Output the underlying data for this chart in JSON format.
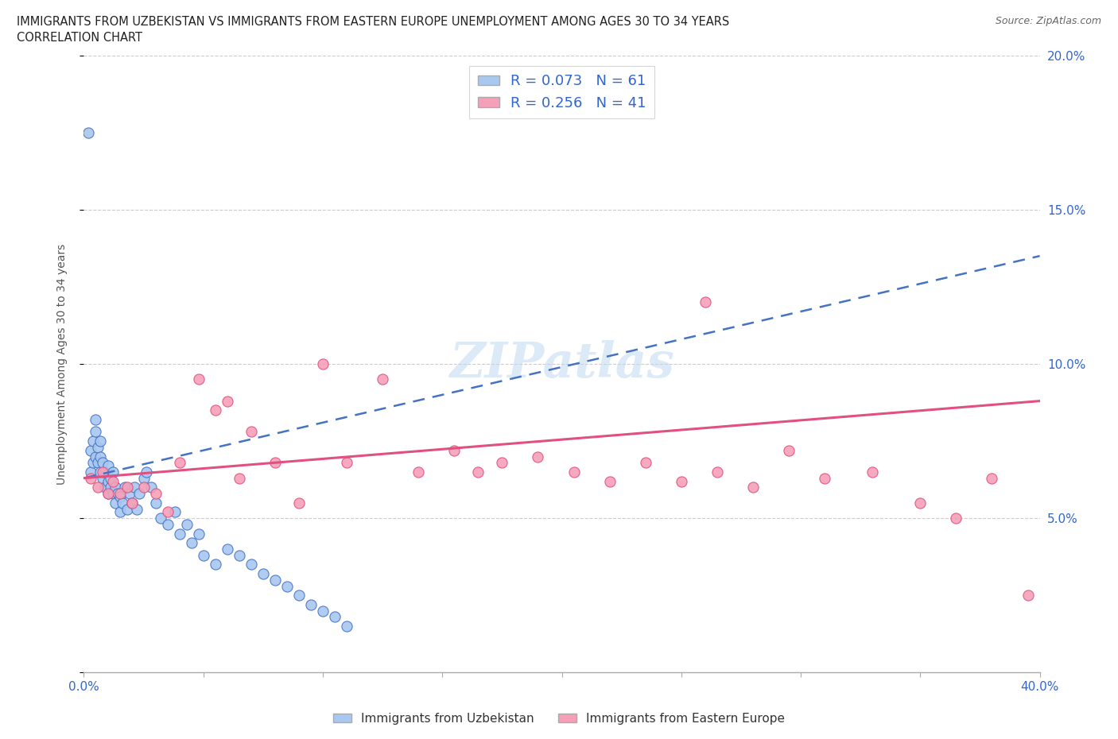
{
  "title_line1": "IMMIGRANTS FROM UZBEKISTAN VS IMMIGRANTS FROM EASTERN EUROPE UNEMPLOYMENT AMONG AGES 30 TO 34 YEARS",
  "title_line2": "CORRELATION CHART",
  "source": "Source: ZipAtlas.com",
  "ylabel": "Unemployment Among Ages 30 to 34 years",
  "xlim": [
    0,
    0.4
  ],
  "ylim": [
    0,
    0.2
  ],
  "color_uzbekistan": "#a8c8f0",
  "color_eastern_europe": "#f5a0b8",
  "line_color_uzbekistan": "#4472C4",
  "line_color_eastern_europe": "#E05080",
  "R_uzbekistan": 0.073,
  "N_uzbekistan": 61,
  "R_eastern_europe": 0.256,
  "N_eastern_europe": 41,
  "watermark": "ZIPatlas",
  "uz_trend_x0": 0.0,
  "uz_trend_y0": 0.063,
  "uz_trend_x1": 0.4,
  "uz_trend_y1": 0.135,
  "ee_trend_x0": 0.0,
  "ee_trend_y0": 0.063,
  "ee_trend_x1": 0.4,
  "ee_trend_y1": 0.088,
  "uzbekistan_x": [
    0.002,
    0.003,
    0.003,
    0.004,
    0.004,
    0.005,
    0.005,
    0.005,
    0.006,
    0.006,
    0.007,
    0.007,
    0.007,
    0.008,
    0.008,
    0.009,
    0.009,
    0.01,
    0.01,
    0.01,
    0.011,
    0.011,
    0.012,
    0.012,
    0.013,
    0.013,
    0.014,
    0.015,
    0.015,
    0.016,
    0.017,
    0.018,
    0.019,
    0.02,
    0.021,
    0.022,
    0.023,
    0.025,
    0.026,
    0.028,
    0.03,
    0.032,
    0.035,
    0.038,
    0.04,
    0.043,
    0.045,
    0.048,
    0.05,
    0.055,
    0.06,
    0.065,
    0.07,
    0.075,
    0.08,
    0.085,
    0.09,
    0.095,
    0.1,
    0.105,
    0.11
  ],
  "uzbekistan_y": [
    0.175,
    0.065,
    0.072,
    0.068,
    0.075,
    0.07,
    0.078,
    0.082,
    0.068,
    0.073,
    0.065,
    0.07,
    0.075,
    0.063,
    0.068,
    0.06,
    0.065,
    0.058,
    0.062,
    0.067,
    0.06,
    0.063,
    0.058,
    0.065,
    0.055,
    0.06,
    0.058,
    0.052,
    0.057,
    0.055,
    0.06,
    0.053,
    0.058,
    0.055,
    0.06,
    0.053,
    0.058,
    0.063,
    0.065,
    0.06,
    0.055,
    0.05,
    0.048,
    0.052,
    0.045,
    0.048,
    0.042,
    0.045,
    0.038,
    0.035,
    0.04,
    0.038,
    0.035,
    0.032,
    0.03,
    0.028,
    0.025,
    0.022,
    0.02,
    0.018,
    0.015
  ],
  "eastern_europe_x": [
    0.003,
    0.006,
    0.008,
    0.01,
    0.012,
    0.015,
    0.018,
    0.02,
    0.025,
    0.03,
    0.035,
    0.04,
    0.048,
    0.055,
    0.06,
    0.065,
    0.07,
    0.08,
    0.09,
    0.1,
    0.11,
    0.125,
    0.14,
    0.155,
    0.165,
    0.175,
    0.19,
    0.205,
    0.22,
    0.235,
    0.25,
    0.265,
    0.28,
    0.295,
    0.26,
    0.31,
    0.33,
    0.35,
    0.365,
    0.38,
    0.395
  ],
  "eastern_europe_y": [
    0.063,
    0.06,
    0.065,
    0.058,
    0.062,
    0.058,
    0.06,
    0.055,
    0.06,
    0.058,
    0.052,
    0.068,
    0.095,
    0.085,
    0.088,
    0.063,
    0.078,
    0.068,
    0.055,
    0.1,
    0.068,
    0.095,
    0.065,
    0.072,
    0.065,
    0.068,
    0.07,
    0.065,
    0.062,
    0.068,
    0.062,
    0.065,
    0.06,
    0.072,
    0.12,
    0.063,
    0.065,
    0.055,
    0.05,
    0.063,
    0.025
  ]
}
